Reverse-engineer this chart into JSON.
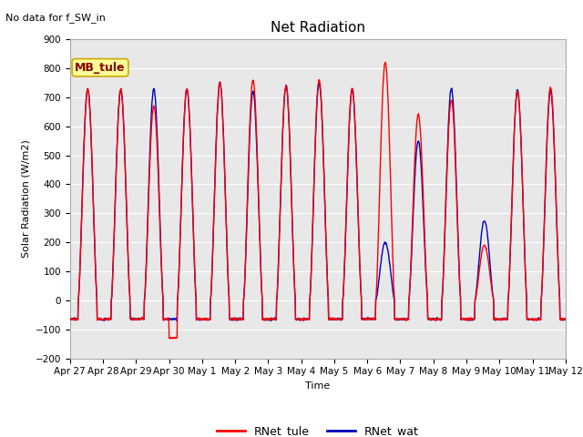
{
  "title": "Net Radiation",
  "no_data_text": "No data for f_SW_in",
  "mb_label": "MB_tule",
  "ylabel": "Solar Radiation (W/m2)",
  "xlabel": "Time",
  "ylim": [
    -200,
    900
  ],
  "yticks": [
    -200,
    -100,
    0,
    100,
    200,
    300,
    400,
    500,
    600,
    700,
    800,
    900
  ],
  "color_tule": "#FF0000",
  "color_wat": "#0000BB",
  "legend_tule": "RNet_tule",
  "legend_wat": "RNet_wat",
  "xtick_labels": [
    "Apr 27",
    "Apr 28",
    "Apr 29",
    "Apr 30",
    "May 1",
    "May 2",
    "May 3",
    "May 4",
    "May 5",
    "May 6",
    "May 7",
    "May 8",
    "May 9",
    "May 10",
    "May 11",
    "May 12"
  ],
  "background_color": "#E8E8E8",
  "n_days": 15,
  "pts_per_day": 96,
  "night_val": -65
}
